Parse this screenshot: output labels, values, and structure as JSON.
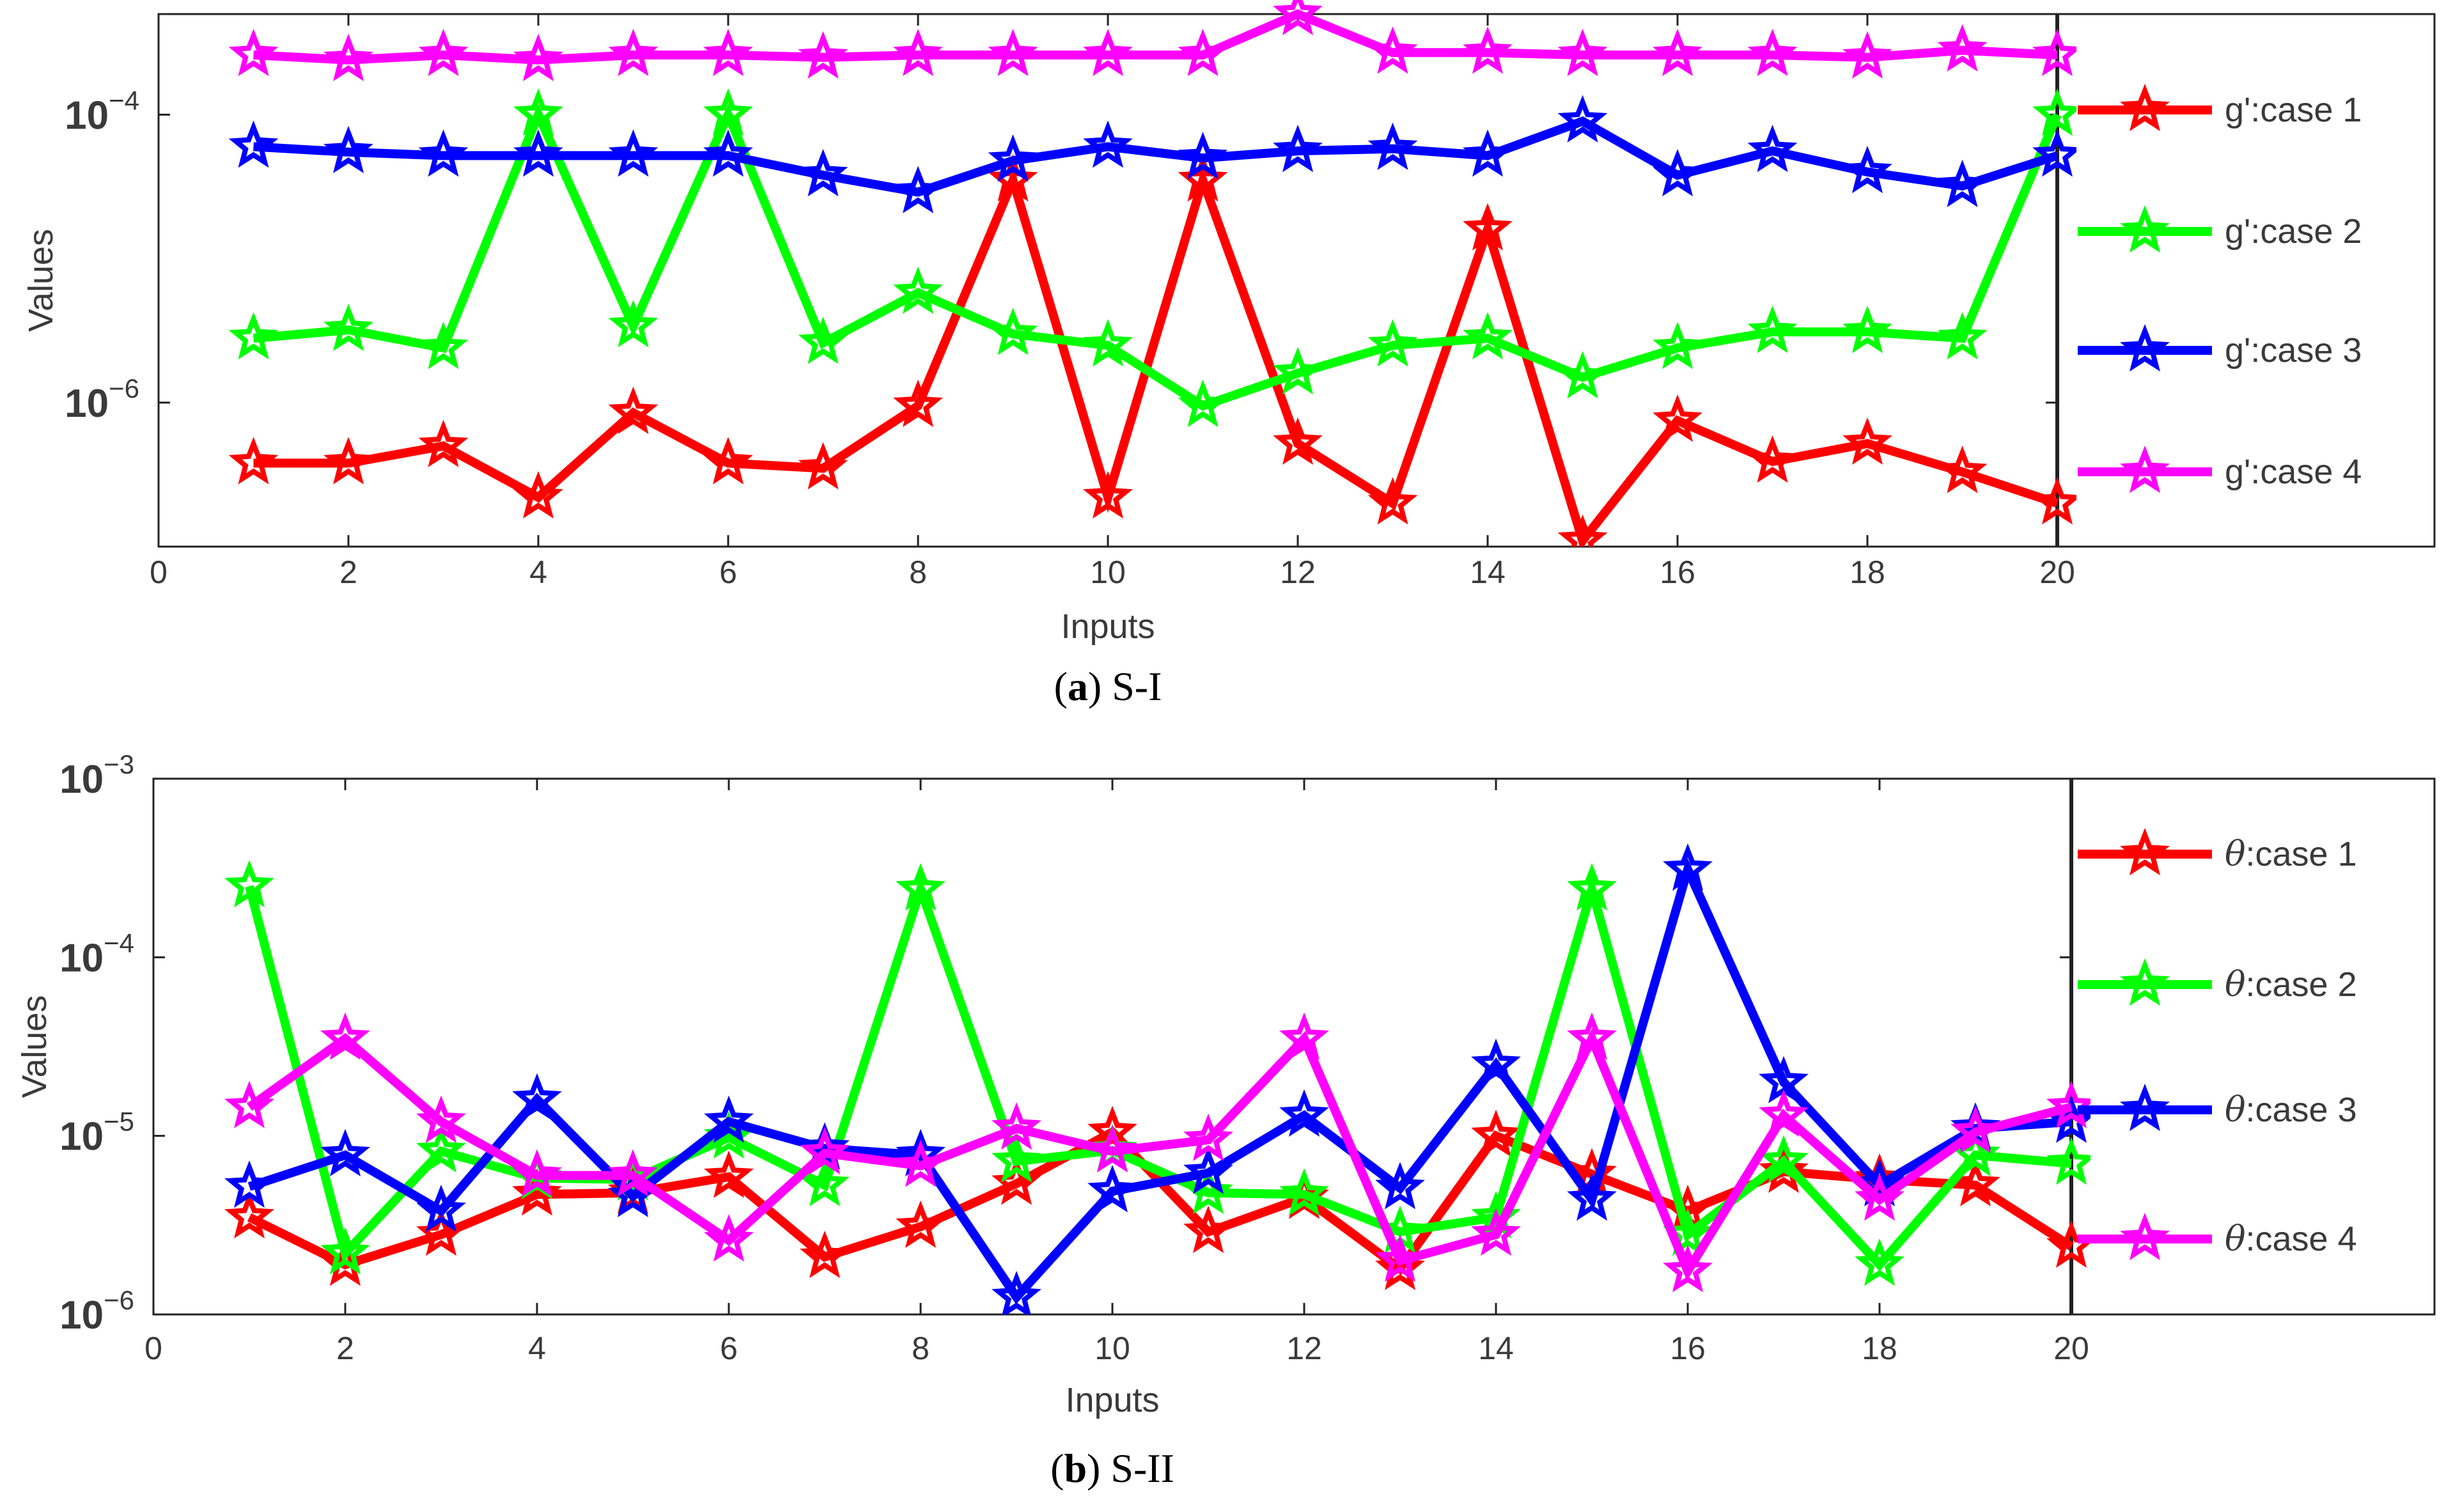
{
  "chart_data": [
    {
      "type": "line",
      "caption": {
        "letter": "a",
        "text": "S-I"
      },
      "xlabel": "Inputs",
      "ylabel": "Values",
      "xlim": [
        0,
        20
      ],
      "ylim": [
        1e-07,
        0.0005
      ],
      "yscale": "log",
      "x_ticks": [
        "0",
        "2",
        "4",
        "6",
        "8",
        "10",
        "12",
        "14",
        "16",
        "18",
        "20"
      ],
      "y_ticks": [
        {
          "value": 1e-06,
          "base": "10",
          "exp": "−6"
        },
        {
          "value": 0.0001,
          "base": "10",
          "exp": "−4"
        }
      ],
      "grid": false,
      "legend_position": "right",
      "legend_prefix": "g'",
      "x": [
        1,
        2,
        3,
        4,
        5,
        6,
        7,
        8,
        9,
        10,
        11,
        12,
        13,
        14,
        15,
        16,
        17,
        18,
        19,
        20
      ],
      "series": [
        {
          "name": "g':case 1",
          "label": "case 1",
          "color": "#ff0000",
          "values": [
            3.8e-07,
            3.8e-07,
            5e-07,
            2.2e-07,
            8.5e-07,
            3.8e-07,
            3.5e-07,
            9.5e-07,
            3.5e-05,
            2.2e-07,
            3.5e-05,
            5.2e-07,
            2e-07,
            1.6e-05,
            1.1e-07,
            7.5e-07,
            3.9e-07,
            5.2e-07,
            3.3e-07,
            2e-07
          ]
        },
        {
          "name": "g':case 2",
          "label": "case 2",
          "color": "#00ff00",
          "values": [
            2.8e-06,
            3.2e-06,
            2.4e-06,
            0.0001,
            3.4e-06,
            0.0001,
            2.6e-06,
            5.8e-06,
            3e-06,
            2.5e-06,
            9.5e-07,
            1.6e-06,
            2.5e-06,
            2.8e-06,
            1.5e-06,
            2.4e-06,
            3.1e-06,
            3.1e-06,
            2.8e-06,
            0.0001
          ]
        },
        {
          "name": "g':case 3",
          "label": "case 3",
          "color": "#0000ff",
          "values": [
            6e-05,
            5.5e-05,
            5.2e-05,
            5.2e-05,
            5.2e-05,
            5.2e-05,
            3.8e-05,
            2.9e-05,
            4.8e-05,
            6e-05,
            5e-05,
            5.6e-05,
            5.8e-05,
            5.2e-05,
            9e-05,
            3.8e-05,
            5.6e-05,
            4e-05,
            3.2e-05,
            5.2e-05
          ]
        },
        {
          "name": "g':case 4",
          "label": "case 4",
          "color": "#ff00ff",
          "values": [
            0.00026,
            0.00024,
            0.00026,
            0.00024,
            0.00026,
            0.00026,
            0.00025,
            0.00026,
            0.00026,
            0.00026,
            0.00026,
            0.0005,
            0.00027,
            0.00027,
            0.00026,
            0.00026,
            0.00026,
            0.00025,
            0.00028,
            0.00026
          ]
        }
      ]
    },
    {
      "type": "line",
      "caption": {
        "letter": "b",
        "text": "S-II"
      },
      "xlabel": "Inputs",
      "ylabel": "Values",
      "xlim": [
        0,
        20
      ],
      "ylim": [
        1e-06,
        0.001
      ],
      "yscale": "log",
      "x_ticks": [
        "0",
        "2",
        "4",
        "6",
        "8",
        "10",
        "12",
        "14",
        "16",
        "18",
        "20"
      ],
      "y_ticks": [
        {
          "value": 1e-06,
          "base": "10",
          "exp": "−6"
        },
        {
          "value": 1e-05,
          "base": "10",
          "exp": "−5"
        },
        {
          "value": 0.0001,
          "base": "10",
          "exp": "−4"
        },
        {
          "value": 0.001,
          "base": "10",
          "exp": "−3"
        }
      ],
      "grid": false,
      "legend_position": "right",
      "legend_prefix": "θ",
      "x": [
        1,
        2,
        3,
        4,
        5,
        6,
        7,
        8,
        9,
        10,
        11,
        12,
        13,
        14,
        15,
        16,
        17,
        18,
        19,
        20
      ],
      "series": [
        {
          "name": "θ:case 1",
          "label": "case 1",
          "color": "#ff0000",
          "values": [
            3.5e-06,
            1.9e-06,
            2.8e-06,
            4.7e-06,
            4.8e-06,
            5.9e-06,
            2.1e-06,
            3.1e-06,
            5.4e-06,
            1.05e-05,
            2.9e-06,
            4.5e-06,
            1.8e-06,
            1e-05,
            6.1e-06,
            3.8e-06,
            6.3e-06,
            5.7e-06,
            5.3e-06,
            2.4e-06
          ]
        },
        {
          "name": "θ:case 2",
          "label": "case 2",
          "color": "#00ff00",
          "values": [
            0.00025,
            2.2e-06,
            8.2e-06,
            5.8e-06,
            5.7e-06,
            9.8e-06,
            5.3e-06,
            0.00024,
            7.2e-06,
            8.3e-06,
            4.8e-06,
            4.7e-06,
            2.9e-06,
            3.5e-06,
            0.00024,
            2.8e-06,
            7.2e-06,
            1.9e-06,
            7.8e-06,
            7e-06
          ]
        },
        {
          "name": "θ:case 3",
          "label": "case 3",
          "color": "#0000ff",
          "values": [
            5.2e-06,
            7.8e-06,
            3.8e-06,
            1.6e-05,
            4.6e-06,
            1.2e-05,
            8.5e-06,
            7.8e-06,
            1.25e-06,
            4.9e-06,
            6.2e-06,
            1.3e-05,
            5.1e-06,
            2.5e-05,
            4.4e-06,
            0.00031,
            2e-05,
            5.3e-06,
            1.1e-05,
            1.2e-05
          ]
        },
        {
          "name": "θ:case 4",
          "label": "case 4",
          "color": "#ff00ff",
          "values": [
            1.45e-05,
            3.5e-05,
            1.2e-05,
            6e-06,
            6e-06,
            2.6e-06,
            8e-06,
            6.8e-06,
            1.1e-05,
            8.2e-06,
            9.5e-06,
            3.5e-05,
            2e-06,
            2.8e-06,
            3.5e-05,
            1.75e-06,
            1.3e-05,
            4.4e-06,
            1.05e-05,
            1.45e-05
          ]
        }
      ]
    }
  ]
}
